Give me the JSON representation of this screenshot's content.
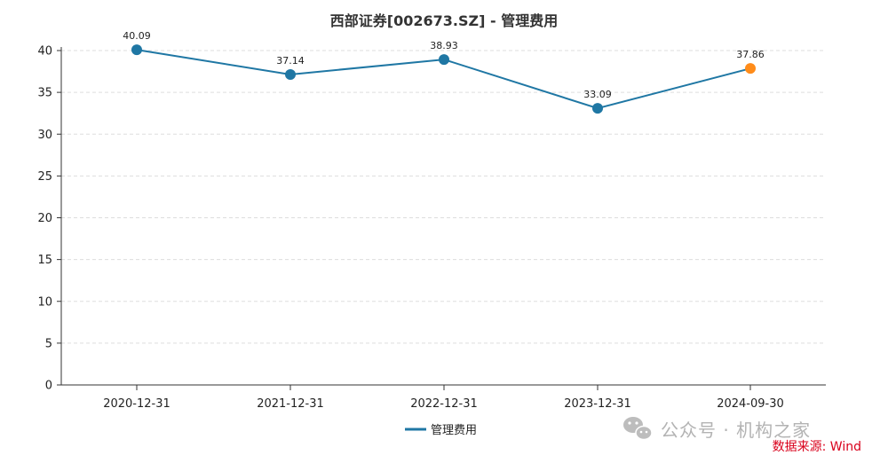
{
  "chart_data": {
    "type": "line",
    "title": "西部证券[002673.SZ] - 管理费用",
    "xlabel": "",
    "ylabel": "",
    "categories": [
      "2020-12-31",
      "2021-12-31",
      "2022-12-31",
      "2023-12-31",
      "2024-09-30"
    ],
    "series": [
      {
        "name": "管理费用",
        "values": [
          40.09,
          37.14,
          38.93,
          33.09,
          37.86
        ],
        "data_labels": [
          "40.09",
          "37.14",
          "38.93",
          "33.09",
          "37.86"
        ],
        "color": "#1f77a4",
        "highlight_last_color": "#ff8c1a"
      }
    ],
    "ylim": [
      0,
      40
    ],
    "yticks": [
      0,
      5,
      10,
      15,
      20,
      25,
      30,
      35,
      40
    ],
    "grid": "horizontal-dashed",
    "legend_position": "bottom-center"
  },
  "watermark": "公众号 · 机构之家",
  "source": "数据来源: Wind",
  "colors": {
    "grid": "#dddddd",
    "axis": "#333333",
    "line": "#1f77a4",
    "last_point": "#ff8c1a",
    "source": "#d9001b"
  }
}
